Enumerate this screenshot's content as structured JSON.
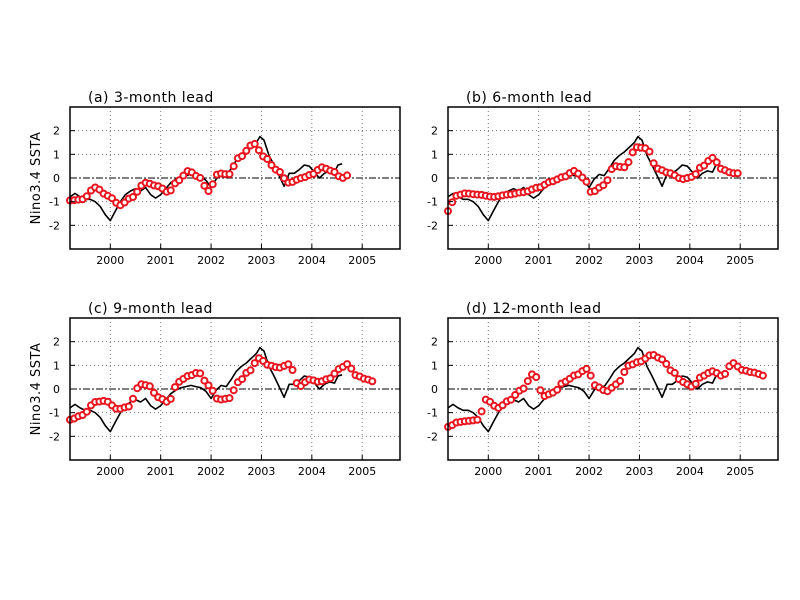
{
  "figure": {
    "colors": {
      "observed": "#000000",
      "forecast": "#e8141e",
      "grid": "#777777"
    }
  },
  "chart_data": [
    {
      "type": "line",
      "title": "(a) 3-month lead",
      "ylabel": "Nino3.4 SSTA",
      "xlim": [
        1999.2,
        2005.75
      ],
      "ylim": [
        -3,
        3
      ],
      "xticks": [
        2000,
        2001,
        2002,
        2003,
        2004,
        2005
      ],
      "yticks": [
        -2,
        -1,
        0,
        1,
        2
      ],
      "grid": true,
      "zero_line": true,
      "forecast_range": [
        1999.2,
        2004.75
      ],
      "forecast_points": [
        [
          1999.2,
          -0.95
        ],
        [
          1999.45,
          -0.9
        ],
        [
          1999.7,
          -0.4
        ],
        [
          1999.95,
          -0.75
        ],
        [
          2000.2,
          -1.15
        ],
        [
          2000.4,
          -0.85
        ],
        [
          2000.7,
          -0.2
        ],
        [
          2000.95,
          -0.35
        ],
        [
          2001.15,
          -0.6
        ],
        [
          2001.35,
          -0.1
        ],
        [
          2001.55,
          0.3
        ],
        [
          2001.75,
          0.05
        ],
        [
          2001.95,
          -0.55
        ],
        [
          2002.15,
          0.2
        ],
        [
          2002.35,
          0.15
        ],
        [
          2002.55,
          0.85
        ],
        [
          2002.85,
          1.45
        ],
        [
          2003.05,
          0.9
        ],
        [
          2003.3,
          0.35
        ],
        [
          2003.55,
          -0.2
        ],
        [
          2003.8,
          0.0
        ],
        [
          2004.0,
          0.15
        ],
        [
          2004.2,
          0.45
        ],
        [
          2004.4,
          0.3
        ],
        [
          2004.6,
          0.0
        ],
        [
          2004.75,
          0.15
        ]
      ]
    },
    {
      "type": "line",
      "title": "(b) 6-month lead",
      "ylabel": "",
      "xlim": [
        1999.2,
        2005.75
      ],
      "ylim": [
        -3,
        3
      ],
      "xticks": [
        2000,
        2001,
        2002,
        2003,
        2004,
        2005
      ],
      "yticks": [
        -2,
        -1,
        0,
        1,
        2
      ],
      "grid": true,
      "zero_line": true,
      "forecast_range": [
        1999.2,
        2005.0
      ],
      "forecast_points": [
        [
          1999.2,
          -1.4
        ],
        [
          1999.35,
          -0.75
        ],
        [
          1999.55,
          -0.65
        ],
        [
          1999.8,
          -0.7
        ],
        [
          2000.1,
          -0.8
        ],
        [
          2000.4,
          -0.7
        ],
        [
          2000.7,
          -0.6
        ],
        [
          2001.0,
          -0.4
        ],
        [
          2001.25,
          -0.15
        ],
        [
          2001.5,
          0.05
        ],
        [
          2001.7,
          0.3
        ],
        [
          2001.9,
          0.0
        ],
        [
          2002.05,
          -0.6
        ],
        [
          2002.3,
          -0.3
        ],
        [
          2002.5,
          0.5
        ],
        [
          2002.7,
          0.45
        ],
        [
          2002.95,
          1.3
        ],
        [
          2003.15,
          1.25
        ],
        [
          2003.35,
          0.4
        ],
        [
          2003.6,
          0.2
        ],
        [
          2003.85,
          -0.05
        ],
        [
          2004.05,
          0.05
        ],
        [
          2004.25,
          0.5
        ],
        [
          2004.45,
          0.85
        ],
        [
          2004.65,
          0.35
        ],
        [
          2004.85,
          0.2
        ],
        [
          2005.0,
          0.2
        ]
      ]
    },
    {
      "type": "line",
      "title": "(c) 9-month lead",
      "ylabel": "Nino3.4 SSTA",
      "xlim": [
        1999.2,
        2005.75
      ],
      "ylim": [
        -3,
        3
      ],
      "xticks": [
        2000,
        2001,
        2002,
        2003,
        2004,
        2005
      ],
      "yticks": [
        -2,
        -1,
        0,
        1,
        2
      ],
      "grid": true,
      "zero_line": true,
      "forecast_range": [
        1999.2,
        2005.25
      ],
      "forecast_points": [
        [
          1999.2,
          -1.3
        ],
        [
          1999.45,
          -1.1
        ],
        [
          1999.7,
          -0.55
        ],
        [
          1999.9,
          -0.5
        ],
        [
          2000.15,
          -0.85
        ],
        [
          2000.35,
          -0.75
        ],
        [
          2000.6,
          0.2
        ],
        [
          2000.75,
          0.15
        ],
        [
          2000.95,
          -0.35
        ],
        [
          2001.15,
          -0.55
        ],
        [
          2001.35,
          0.3
        ],
        [
          2001.55,
          0.55
        ],
        [
          2001.75,
          0.7
        ],
        [
          2001.95,
          0.15
        ],
        [
          2002.15,
          -0.45
        ],
        [
          2002.35,
          -0.4
        ],
        [
          2002.55,
          0.3
        ],
        [
          2002.75,
          0.75
        ],
        [
          2002.95,
          1.3
        ],
        [
          2003.15,
          1.0
        ],
        [
          2003.35,
          0.9
        ],
        [
          2003.55,
          1.05
        ],
        [
          2003.75,
          0.1
        ],
        [
          2003.95,
          0.4
        ],
        [
          2004.15,
          0.3
        ],
        [
          2004.35,
          0.45
        ],
        [
          2004.55,
          0.85
        ],
        [
          2004.7,
          1.05
        ],
        [
          2004.9,
          0.55
        ],
        [
          2005.1,
          0.4
        ],
        [
          2005.25,
          0.3
        ]
      ]
    },
    {
      "type": "line",
      "title": "(d) 12-month lead",
      "ylabel": "",
      "xlim": [
        1999.2,
        2005.75
      ],
      "ylim": [
        -3,
        3
      ],
      "xticks": [
        2000,
        2001,
        2002,
        2003,
        2004,
        2005
      ],
      "yticks": [
        -2,
        -1,
        0,
        1,
        2
      ],
      "grid": true,
      "zero_line": true,
      "forecast_range": [
        1999.2,
        2005.5
      ],
      "forecast_points": [
        [
          1999.2,
          -1.6
        ],
        [
          1999.4,
          -1.4
        ],
        [
          1999.6,
          -1.35
        ],
        [
          1999.8,
          -1.3
        ],
        [
          1999.95,
          -0.45
        ],
        [
          2000.2,
          -0.8
        ],
        [
          2000.4,
          -0.5
        ],
        [
          2000.65,
          -0.05
        ],
        [
          2000.9,
          0.65
        ],
        [
          2001.1,
          -0.3
        ],
        [
          2001.3,
          -0.15
        ],
        [
          2001.5,
          0.3
        ],
        [
          2001.75,
          0.6
        ],
        [
          2001.95,
          0.85
        ],
        [
          2002.15,
          0.1
        ],
        [
          2002.35,
          -0.1
        ],
        [
          2002.55,
          0.2
        ],
        [
          2002.8,
          1.0
        ],
        [
          2003.0,
          1.15
        ],
        [
          2003.25,
          1.45
        ],
        [
          2003.45,
          1.25
        ],
        [
          2003.65,
          0.75
        ],
        [
          2003.85,
          0.3
        ],
        [
          2004.05,
          0.1
        ],
        [
          2004.25,
          0.55
        ],
        [
          2004.45,
          0.75
        ],
        [
          2004.65,
          0.55
        ],
        [
          2004.85,
          1.1
        ],
        [
          2005.05,
          0.8
        ],
        [
          2005.25,
          0.7
        ],
        [
          2005.5,
          0.55
        ]
      ]
    }
  ]
}
